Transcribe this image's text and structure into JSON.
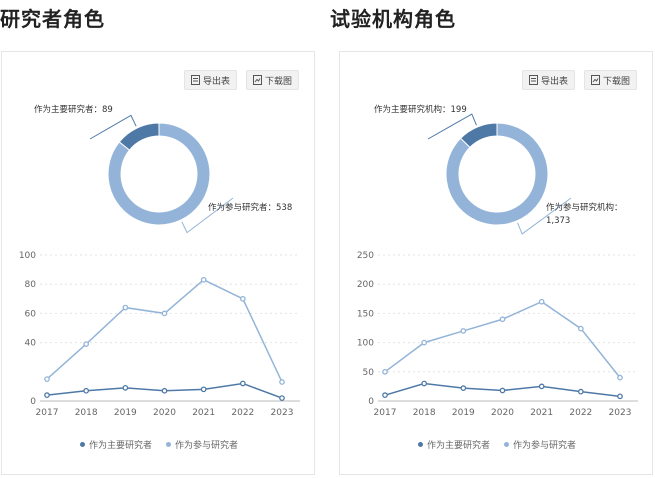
{
  "sections": [
    {
      "title": "研究者角色"
    },
    {
      "title": "试验机构角色"
    }
  ],
  "toolbar": {
    "export_table": "导出表",
    "download_image": "下载图"
  },
  "colors": {
    "dark": "#4e79a7",
    "light": "#93b4d8",
    "grid": "#e3e3e3",
    "axis": "#bbbbbb"
  },
  "chart_data": [
    {
      "type": "pie",
      "variant": "donut",
      "slices": [
        {
          "label": "作为主要研究者",
          "value": 89,
          "value_text": "89",
          "color": "#4e79a7"
        },
        {
          "label": "作为参与研究者",
          "value": 538,
          "value_text": "538",
          "color": "#93b4d8"
        }
      ]
    },
    {
      "type": "line",
      "x": [
        "2017",
        "2018",
        "2019",
        "2020",
        "2021",
        "2022",
        "2023"
      ],
      "ylim": [
        0,
        100
      ],
      "yticks": [
        0,
        40,
        60,
        80,
        100
      ],
      "grid": true,
      "legend": "bottom",
      "series": [
        {
          "name": "作为主要研究者",
          "values": [
            4,
            7,
            9,
            7,
            8,
            12,
            2
          ],
          "color": "#4e79a7"
        },
        {
          "name": "作为参与研究者",
          "values": [
            15,
            39,
            64,
            60,
            83,
            70,
            13
          ],
          "color": "#93b4d8"
        }
      ]
    },
    {
      "type": "pie",
      "variant": "donut",
      "slices": [
        {
          "label": "作为主要研究机构",
          "value": 199,
          "value_text": "199",
          "color": "#4e79a7"
        },
        {
          "label": "作为参与研究机构",
          "value": 1373,
          "value_text": "1,373",
          "color": "#93b4d8"
        }
      ]
    },
    {
      "type": "line",
      "x": [
        "2017",
        "2018",
        "2019",
        "2020",
        "2021",
        "2022",
        "2023"
      ],
      "ylim": [
        0,
        250
      ],
      "yticks": [
        0,
        50,
        100,
        150,
        200,
        250
      ],
      "grid": true,
      "legend": "bottom",
      "series": [
        {
          "name": "作为主要研究机构",
          "values": [
            10,
            30,
            22,
            18,
            25,
            16,
            8
          ],
          "color": "#4e79a7"
        },
        {
          "name": "作为参与研究机构",
          "values": [
            50,
            100,
            120,
            140,
            170,
            124,
            40
          ],
          "color": "#93b4d8"
        }
      ]
    }
  ],
  "legends": [
    [
      {
        "label": "作为主要研究者",
        "color": "#4e79a7"
      },
      {
        "label": "作为参与研究者",
        "color": "#93b4d8"
      }
    ],
    [
      {
        "label": "作为主要研究者",
        "color": "#4e79a7"
      },
      {
        "label": "作为参与研究者",
        "color": "#93b4d8"
      }
    ]
  ]
}
